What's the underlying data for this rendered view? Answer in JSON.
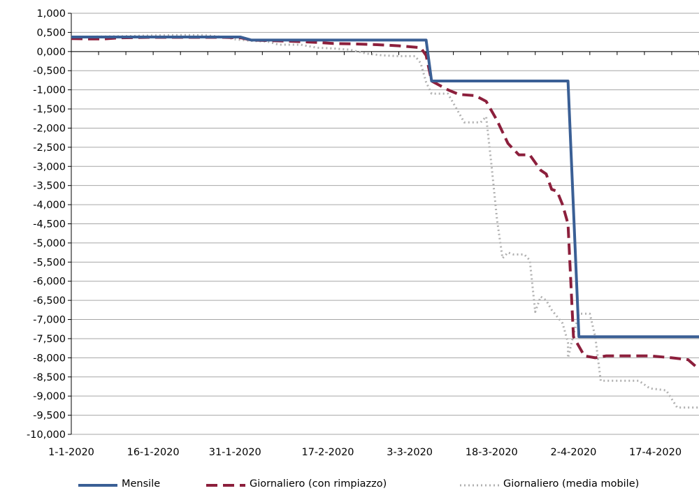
{
  "chart_data": {
    "type": "line",
    "title": "",
    "xlabel": "",
    "ylabel": "",
    "ylim": [
      -10,
      1
    ],
    "y_ticks": [
      1,
      0.5,
      0,
      -0.5,
      -1,
      -1.5,
      -2,
      -2.5,
      -3,
      -3.5,
      -4,
      -4.5,
      -5,
      -5.5,
      -6,
      -6.5,
      -7,
      -7.5,
      -8,
      -8.5,
      -9,
      -9.5,
      -10
    ],
    "y_tick_labels": [
      "1,000",
      "0,500",
      "0,000",
      "-0,500",
      "-1,000",
      "-1,500",
      "-2,000",
      "-2,500",
      "-3,000",
      "-3,500",
      "-4,000",
      "-4,500",
      "-5,000",
      "-5,500",
      "-6,000",
      "-6,500",
      "-7,000",
      "-7,500",
      "-8,000",
      "-8,500",
      "-9,000",
      "-9,500",
      "-10,000"
    ],
    "x_range": [
      "2020-01-01",
      "2020-04-25"
    ],
    "x_tick_dates": [
      "2020-01-01",
      "2020-01-16",
      "2020-01-31",
      "2020-02-17",
      "2020-03-03",
      "2020-03-18",
      "2020-04-02",
      "2020-04-17"
    ],
    "x_tick_labels": [
      "1-1-2020",
      "16-1-2020",
      "31-1-2020",
      "17-2-2020",
      "3-3-2020",
      "18-3-2020",
      "2-4-2020",
      "17-4-2020"
    ],
    "grid": "horizontal",
    "legend_position": "bottom",
    "series": [
      {
        "name": "Mensile",
        "color": "#3a5f95",
        "style": "solid",
        "points": [
          [
            "2020-01-01",
            0.38
          ],
          [
            "2020-02-01",
            0.38
          ],
          [
            "2020-02-03",
            0.3
          ],
          [
            "2020-03-06",
            0.3
          ],
          [
            "2020-03-07",
            -0.77
          ],
          [
            "2020-04-01",
            -0.77
          ],
          [
            "2020-04-03",
            -7.45
          ],
          [
            "2020-04-25",
            -7.45
          ]
        ]
      },
      {
        "name": "Giornaliero (con rimpiazzo)",
        "color": "#8c1f3c",
        "style": "dashed",
        "points": [
          [
            "2020-01-01",
            0.34
          ],
          [
            "2020-01-04",
            0.33
          ],
          [
            "2020-01-07",
            0.33
          ],
          [
            "2020-01-10",
            0.36
          ],
          [
            "2020-01-15",
            0.37
          ],
          [
            "2020-01-22",
            0.37
          ],
          [
            "2020-01-29",
            0.37
          ],
          [
            "2020-02-01",
            0.36
          ],
          [
            "2020-02-03",
            0.3
          ],
          [
            "2020-02-10",
            0.27
          ],
          [
            "2020-02-15",
            0.24
          ],
          [
            "2020-02-18",
            0.21
          ],
          [
            "2020-02-22",
            0.2
          ],
          [
            "2020-02-26",
            0.18
          ],
          [
            "2020-03-01",
            0.15
          ],
          [
            "2020-03-05",
            0.1
          ],
          [
            "2020-03-06",
            -0.1
          ],
          [
            "2020-03-07",
            -0.77
          ],
          [
            "2020-03-10",
            -1.0
          ],
          [
            "2020-03-12",
            -1.12
          ],
          [
            "2020-03-15",
            -1.15
          ],
          [
            "2020-03-17",
            -1.3
          ],
          [
            "2020-03-19",
            -1.8
          ],
          [
            "2020-03-21",
            -2.4
          ],
          [
            "2020-03-23",
            -2.7
          ],
          [
            "2020-03-25",
            -2.7
          ],
          [
            "2020-03-27",
            -3.1
          ],
          [
            "2020-03-28",
            -3.2
          ],
          [
            "2020-03-29",
            -3.6
          ],
          [
            "2020-03-30",
            -3.65
          ],
          [
            "2020-03-31",
            -4.0
          ],
          [
            "2020-04-01",
            -4.5
          ],
          [
            "2020-04-02",
            -7.45
          ],
          [
            "2020-04-04",
            -7.95
          ],
          [
            "2020-04-06",
            -8.0
          ],
          [
            "2020-04-08",
            -7.95
          ],
          [
            "2020-04-12",
            -7.95
          ],
          [
            "2020-04-16",
            -7.95
          ],
          [
            "2020-04-20",
            -8.0
          ],
          [
            "2020-04-23",
            -8.05
          ],
          [
            "2020-04-25",
            -8.3
          ]
        ]
      },
      {
        "name": "Giornaliero (media mobile)",
        "color": "#b0b0b0",
        "style": "dotted",
        "points": [
          [
            "2020-01-01",
            0.38
          ],
          [
            "2020-01-10",
            0.4
          ],
          [
            "2020-01-16",
            0.42
          ],
          [
            "2020-01-22",
            0.43
          ],
          [
            "2020-01-26",
            0.42
          ],
          [
            "2020-01-29",
            0.38
          ],
          [
            "2020-01-31",
            0.32
          ],
          [
            "2020-02-03",
            0.28
          ],
          [
            "2020-02-06",
            0.26
          ],
          [
            "2020-02-08",
            0.18
          ],
          [
            "2020-02-12",
            0.18
          ],
          [
            "2020-02-15",
            0.1
          ],
          [
            "2020-02-18",
            0.08
          ],
          [
            "2020-02-21",
            0.05
          ],
          [
            "2020-02-24",
            -0.05
          ],
          [
            "2020-02-27",
            -0.1
          ],
          [
            "2020-03-01",
            -0.12
          ],
          [
            "2020-03-04",
            -0.12
          ],
          [
            "2020-03-05",
            -0.3
          ],
          [
            "2020-03-06",
            -0.8
          ],
          [
            "2020-03-07",
            -1.1
          ],
          [
            "2020-03-10",
            -1.1
          ],
          [
            "2020-03-11",
            -1.35
          ],
          [
            "2020-03-13",
            -1.85
          ],
          [
            "2020-03-16",
            -1.85
          ],
          [
            "2020-03-17",
            -1.7
          ],
          [
            "2020-03-18",
            -3.0
          ],
          [
            "2020-03-19",
            -4.4
          ],
          [
            "2020-03-20",
            -5.4
          ],
          [
            "2020-03-21",
            -5.25
          ],
          [
            "2020-03-22",
            -5.3
          ],
          [
            "2020-03-24",
            -5.3
          ],
          [
            "2020-03-25",
            -5.45
          ],
          [
            "2020-03-26",
            -6.8
          ],
          [
            "2020-03-27",
            -6.4
          ],
          [
            "2020-03-28",
            -6.5
          ],
          [
            "2020-03-29",
            -6.75
          ],
          [
            "2020-03-31",
            -7.1
          ],
          [
            "2020-04-01",
            -7.6
          ],
          [
            "2020-04-01",
            -8.0
          ],
          [
            "2020-04-02",
            -7.4
          ],
          [
            "2020-04-03",
            -6.85
          ],
          [
            "2020-04-05",
            -6.85
          ],
          [
            "2020-04-06",
            -7.45
          ],
          [
            "2020-04-07",
            -8.6
          ],
          [
            "2020-04-10",
            -8.6
          ],
          [
            "2020-04-14",
            -8.6
          ],
          [
            "2020-04-16",
            -8.8
          ],
          [
            "2020-04-19",
            -8.85
          ],
          [
            "2020-04-21",
            -9.3
          ],
          [
            "2020-04-25",
            -9.3
          ]
        ]
      }
    ]
  }
}
